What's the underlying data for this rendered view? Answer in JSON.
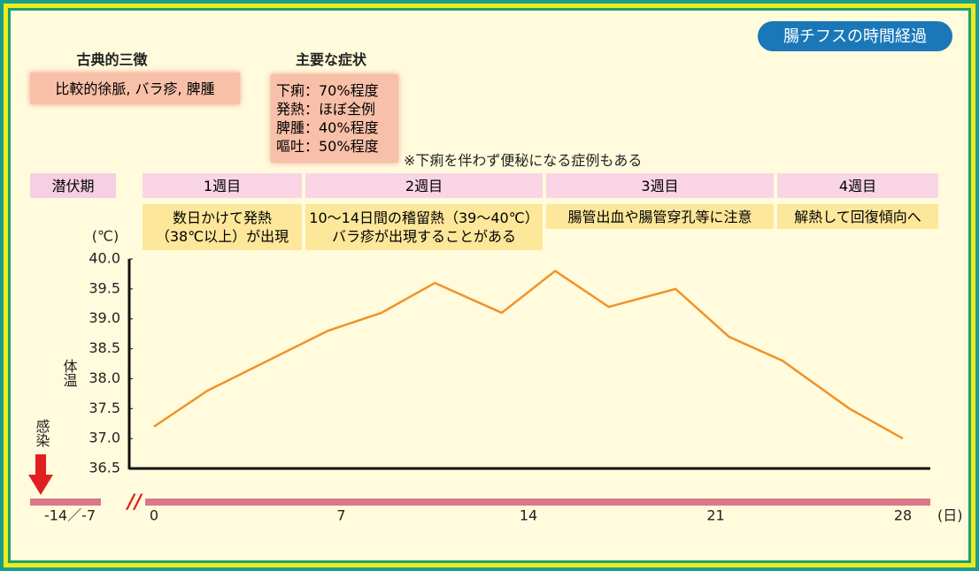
{
  "header": {
    "badge": "腸チフスの時間経過",
    "triad": {
      "title": "古典的三徴",
      "text": "比較的徐脈, バラ疹, 脾腫"
    },
    "symptoms": {
      "title": "主要な症状",
      "lines": [
        "下痢：70%程度",
        "発熱：ほぼ全例",
        "脾腫：40%程度",
        "嘔吐：50%程度"
      ],
      "note": "※下痢を伴わず便秘になる症例もある"
    }
  },
  "phases": [
    {
      "label": "潜伏期",
      "desc": []
    },
    {
      "label": "1週目",
      "desc": [
        "数日かけて発熱",
        "（38℃以上）が出現"
      ]
    },
    {
      "label": "2週目",
      "desc": [
        "10～14日間の稽留熱（39～40℃）",
        "バラ疹が出現することがある"
      ]
    },
    {
      "label": "3週目",
      "desc": [
        "腸管出血や腸管穿孔等に注意"
      ]
    },
    {
      "label": "4週目",
      "desc": [
        "解熱して回復傾向へ"
      ]
    }
  ],
  "chart_data": {
    "type": "line",
    "y_label": "体温",
    "y_unit": "(℃)",
    "x_unit": "(日)",
    "annotation": "感染",
    "pre_tick": "-14／-7",
    "x": [
      0,
      2,
      6.5,
      8.5,
      10.5,
      13,
      15,
      17,
      19.5,
      21.5,
      23.5,
      26,
      28
    ],
    "series": [
      {
        "name": "体温",
        "color": "#f0922a",
        "values": [
          37.2,
          37.8,
          38.8,
          39.1,
          39.6,
          39.1,
          39.8,
          39.2,
          39.5,
          38.7,
          38.3,
          37.5,
          37.0
        ]
      }
    ],
    "xlim": [
      0,
      28
    ],
    "xticks": [
      0,
      7,
      14,
      21,
      28
    ],
    "ylim": [
      36.5,
      40
    ],
    "yticks": [
      36.5,
      {
        "value": 37,
        "label": "37.0"
      },
      37.5,
      {
        "value": 38,
        "label": "38.0"
      },
      38.5,
      {
        "value": 39,
        "label": "39.0"
      },
      39.5,
      {
        "value": 40,
        "label": "40.0"
      }
    ]
  }
}
